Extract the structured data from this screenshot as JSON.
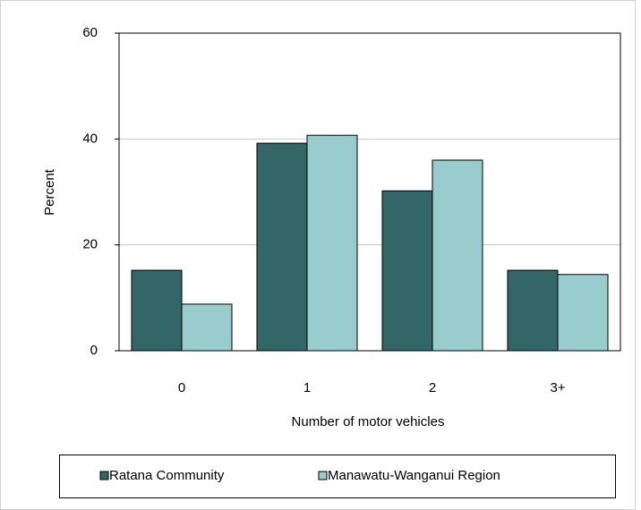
{
  "chart_data": {
    "type": "bar",
    "categories": [
      "0",
      "1",
      "2",
      "3+"
    ],
    "series": [
      {
        "name": "Ratana Community",
        "color": "#336666",
        "values": [
          15.2,
          39.2,
          30.2,
          15.2
        ]
      },
      {
        "name": "Manawatu-Wanganui Region",
        "color": "#99cccc",
        "values": [
          8.8,
          40.7,
          36.0,
          14.4
        ]
      }
    ],
    "xlabel": "Number of motor vehicles",
    "ylabel": "Percent",
    "ylim": [
      0,
      60
    ],
    "yticks": [
      0,
      20,
      40,
      60
    ],
    "grid": true,
    "legend": "bottom"
  }
}
